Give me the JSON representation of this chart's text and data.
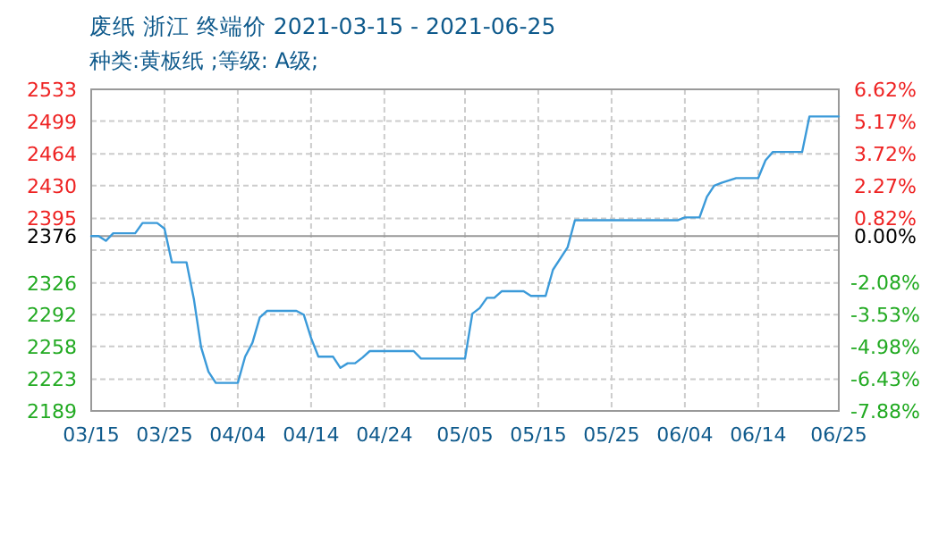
{
  "chart_data": {
    "type": "line",
    "title": "废纸 浙江 终端价 2021-03-15 - 2021-06-25",
    "subtitle": "种类:黄板纸 ;等级: A级;",
    "x": [
      "--03-15",
      "--03-16",
      "--03-17",
      "--03-18",
      "--03-21",
      "--03-22",
      "--03-24",
      "--03-25",
      "--03-26",
      "--03-28",
      "--03-29",
      "--03-30",
      "--03-31",
      "--04-01",
      "--04-04",
      "--04-05",
      "--04-06",
      "--04-07",
      "--04-08",
      "--04-12",
      "--04-13",
      "--04-14",
      "--04-15",
      "--04-17",
      "--04-18",
      "--04-19",
      "--04-20",
      "--04-21",
      "--04-22",
      "--04-28",
      "--04-29",
      "--05-05",
      "--05-06",
      "--05-07",
      "--05-08",
      "--05-09",
      "--05-10",
      "--05-13",
      "--05-14",
      "--05-16",
      "--05-17",
      "--05-19",
      "--05-20",
      "--06-03",
      "--06-04",
      "--06-06",
      "--06-07",
      "--06-08",
      "--06-09",
      "--06-11",
      "--06-14",
      "--06-15",
      "--06-16",
      "--06-20",
      "--06-21",
      "--06-25"
    ],
    "series": [
      {
        "color": "#3b9ad9",
        "values": [
          2376,
          2376,
          2371,
          2379,
          2379,
          2390,
          2390,
          2384,
          2348,
          2348,
          2309,
          2257,
          2231,
          2219,
          2219,
          2247,
          2262,
          2289,
          2296,
          2296,
          2292,
          2267,
          2247,
          2247,
          2235,
          2240,
          2240,
          2246,
          2253,
          2253,
          2245,
          2245,
          2293,
          2299,
          2310,
          2310,
          2317,
          2317,
          2312,
          2312,
          2340,
          2364,
          2393,
          2393,
          2396,
          2396,
          2418,
          2430,
          2433,
          2438,
          2438,
          2457,
          2466,
          2466,
          2504,
          2504
        ]
      }
    ],
    "xlim": [
      "--03-15",
      "--06-25"
    ],
    "xticks": [
      {
        "value": "--03-15",
        "label": "03/15"
      },
      {
        "value": "--03-25",
        "label": "03/25"
      },
      {
        "value": "--04-04",
        "label": "04/04"
      },
      {
        "value": "--04-14",
        "label": "04/14"
      },
      {
        "value": "--04-24",
        "label": "04/24"
      },
      {
        "value": "--05-05",
        "label": "05/05"
      },
      {
        "value": "--05-15",
        "label": "05/15"
      },
      {
        "value": "--05-25",
        "label": "05/25"
      },
      {
        "value": "--06-04",
        "label": "06/04"
      },
      {
        "value": "--06-14",
        "label": "06/14"
      },
      {
        "value": "--06-25",
        "label": "06/25"
      }
    ],
    "ylim": [
      2189,
      2533
    ],
    "yticks": [
      2189,
      2223,
      2258,
      2292,
      2326,
      {
        "value": 2361,
        "label": null
      },
      2376,
      2395,
      2430,
      2464,
      2499,
      2533
    ],
    "y2lim": [
      -7.88,
      6.62
    ],
    "y2ticks": [
      {
        "value": -7.88,
        "label": "-7.88%"
      },
      {
        "value": -6.43,
        "label": "-6.43%"
      },
      {
        "value": -4.98,
        "label": "-4.98%"
      },
      {
        "value": -3.53,
        "label": "-3.53%"
      },
      {
        "value": -2.08,
        "label": "-2.08%"
      },
      {
        "value": -0.63,
        "label": null
      },
      {
        "value": 0,
        "label": "0.00%"
      },
      {
        "value": 0.82,
        "label": "0.82%"
      },
      {
        "value": 2.27,
        "label": "2.27%"
      },
      {
        "value": 3.72,
        "label": "3.72%"
      },
      {
        "value": 5.17,
        "label": "5.17%"
      },
      {
        "value": 6.62,
        "label": "6.62%"
      }
    ],
    "ref_lines": [
      {
        "axis": "y",
        "value": 2376,
        "color": "#999999",
        "line_style": "solid"
      }
    ],
    "grid": true,
    "marker": "none",
    "line_style": "solid"
  }
}
